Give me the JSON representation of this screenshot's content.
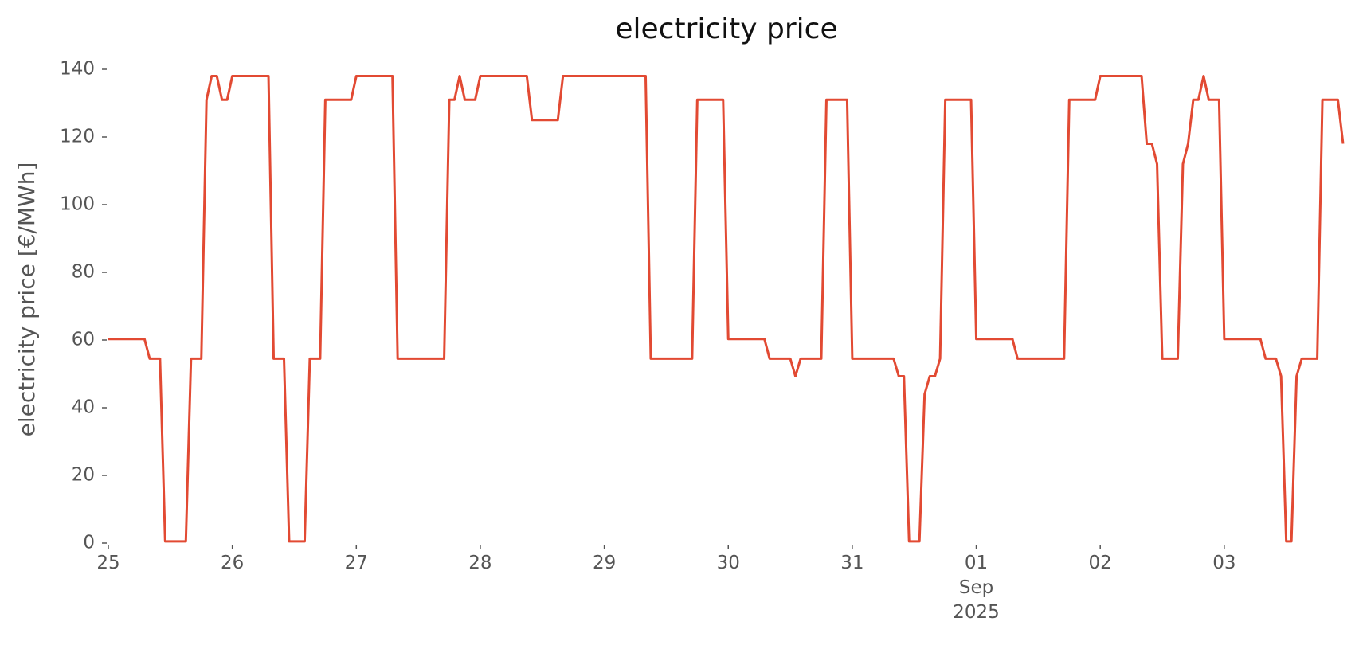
{
  "chart_data": {
    "type": "line",
    "title": "electricity price",
    "y_label": "electricity price [€/MWh]",
    "x": [
      0,
      7,
      8,
      10,
      11,
      15,
      16,
      18,
      19,
      20,
      21,
      22,
      23,
      24,
      31,
      32,
      34,
      35,
      38,
      39,
      41,
      42,
      47,
      48,
      55,
      56,
      65,
      66,
      67,
      68,
      69,
      71,
      72,
      81,
      82,
      87,
      88,
      104,
      105,
      113,
      114,
      119,
      120,
      127,
      128,
      132,
      133,
      134,
      138,
      139,
      143,
      144,
      152,
      153,
      154,
      155,
      157,
      158,
      159,
      160,
      161,
      162,
      167,
      168,
      175,
      176,
      185,
      186,
      191,
      192,
      200,
      201,
      202,
      203,
      204,
      207,
      208,
      209,
      210,
      211,
      212,
      213,
      215,
      216,
      223,
      224,
      226,
      227,
      228,
      229,
      230,
      231,
      234,
      235,
      238,
      239
    ],
    "series": [
      {
        "name": "electricity price",
        "color": "#e24a33",
        "values": [
          60.3,
          60.3,
          54.5,
          54.5,
          0.5,
          0.5,
          54.5,
          54.5,
          131,
          138,
          138,
          131,
          131,
          138,
          138,
          54.5,
          54.5,
          0.5,
          0.5,
          54.5,
          54.5,
          131,
          131,
          138,
          138,
          54.5,
          54.5,
          131,
          131,
          138,
          131,
          131,
          138,
          138,
          125,
          125,
          138,
          138,
          54.5,
          54.5,
          131,
          131,
          60.3,
          60.3,
          54.5,
          54.5,
          49.3,
          54.5,
          54.5,
          131,
          131,
          54.5,
          54.5,
          49.3,
          49.3,
          0.5,
          0.5,
          44,
          49.3,
          49.3,
          54.5,
          131,
          131,
          60.3,
          60.3,
          54.5,
          54.5,
          131,
          131,
          138,
          138,
          118,
          118,
          112,
          54.5,
          54.5,
          112,
          118,
          131,
          131,
          138,
          131,
          131,
          60.3,
          60.3,
          54.5,
          54.5,
          49.3,
          0.5,
          0.5,
          49.3,
          54.5,
          54.5,
          131,
          131,
          118
        ]
      }
    ],
    "xlim": [
      0,
      239
    ],
    "xticks": [
      {
        "value": 0,
        "label": "25"
      },
      {
        "value": 24,
        "label": "26"
      },
      {
        "value": 48,
        "label": "27"
      },
      {
        "value": 72,
        "label": "28"
      },
      {
        "value": 96,
        "label": "29"
      },
      {
        "value": 120,
        "label": "30"
      },
      {
        "value": 144,
        "label": "31"
      },
      {
        "value": 168,
        "label": "01\nSep\n2025"
      },
      {
        "value": 192,
        "label": "02"
      },
      {
        "value": 216,
        "label": "03"
      }
    ],
    "ylim": [
      0,
      140
    ],
    "yticks": [
      0,
      20,
      40,
      60,
      80,
      100,
      120,
      140
    ],
    "grid": false
  }
}
